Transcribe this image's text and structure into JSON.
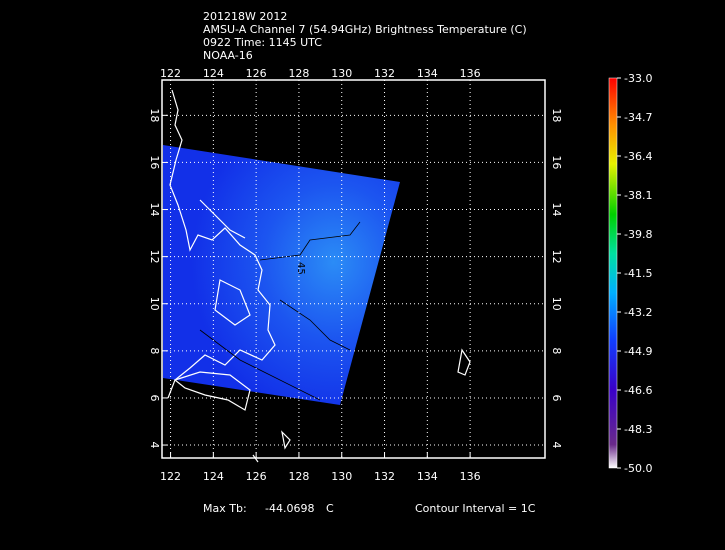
{
  "header": {
    "lines": [
      "201218W 2012",
      "AMSU-A Channel 7 (54.94GHz) Brightness Temperature (C)",
      "0922 Time: 1145 UTC",
      "NOAA-16"
    ]
  },
  "map": {
    "xlim": [
      121.6,
      139.5
    ],
    "ylim": [
      3.45,
      19.5
    ],
    "xticks": [
      122,
      124,
      126,
      128,
      130,
      132,
      134,
      136
    ],
    "yticks": [
      4,
      6,
      8,
      10,
      12,
      14,
      16,
      18
    ],
    "contour_label": "45"
  },
  "colorbar": {
    "lim": [
      -50,
      -33
    ],
    "ticks": [
      {
        "value": -33,
        "label": "-33.0"
      },
      {
        "value": -34.7,
        "label": "-34.7"
      },
      {
        "value": -36.4,
        "label": "-36.4"
      },
      {
        "value": -38.1,
        "label": "-38.1"
      },
      {
        "value": -39.8,
        "label": "-39.8"
      },
      {
        "value": -41.5,
        "label": "-41.5"
      },
      {
        "value": -43.2,
        "label": "-43.2"
      },
      {
        "value": -44.9,
        "label": "-44.9"
      },
      {
        "value": -46.6,
        "label": "-46.6"
      },
      {
        "value": -48.3,
        "label": "-48.3"
      },
      {
        "value": -50,
        "label": "-50.0"
      }
    ]
  },
  "footer": {
    "max_label": "Max Tb:",
    "max_value": "-44.0698",
    "unit": "C",
    "contour": "Contour Interval = 1C"
  }
}
